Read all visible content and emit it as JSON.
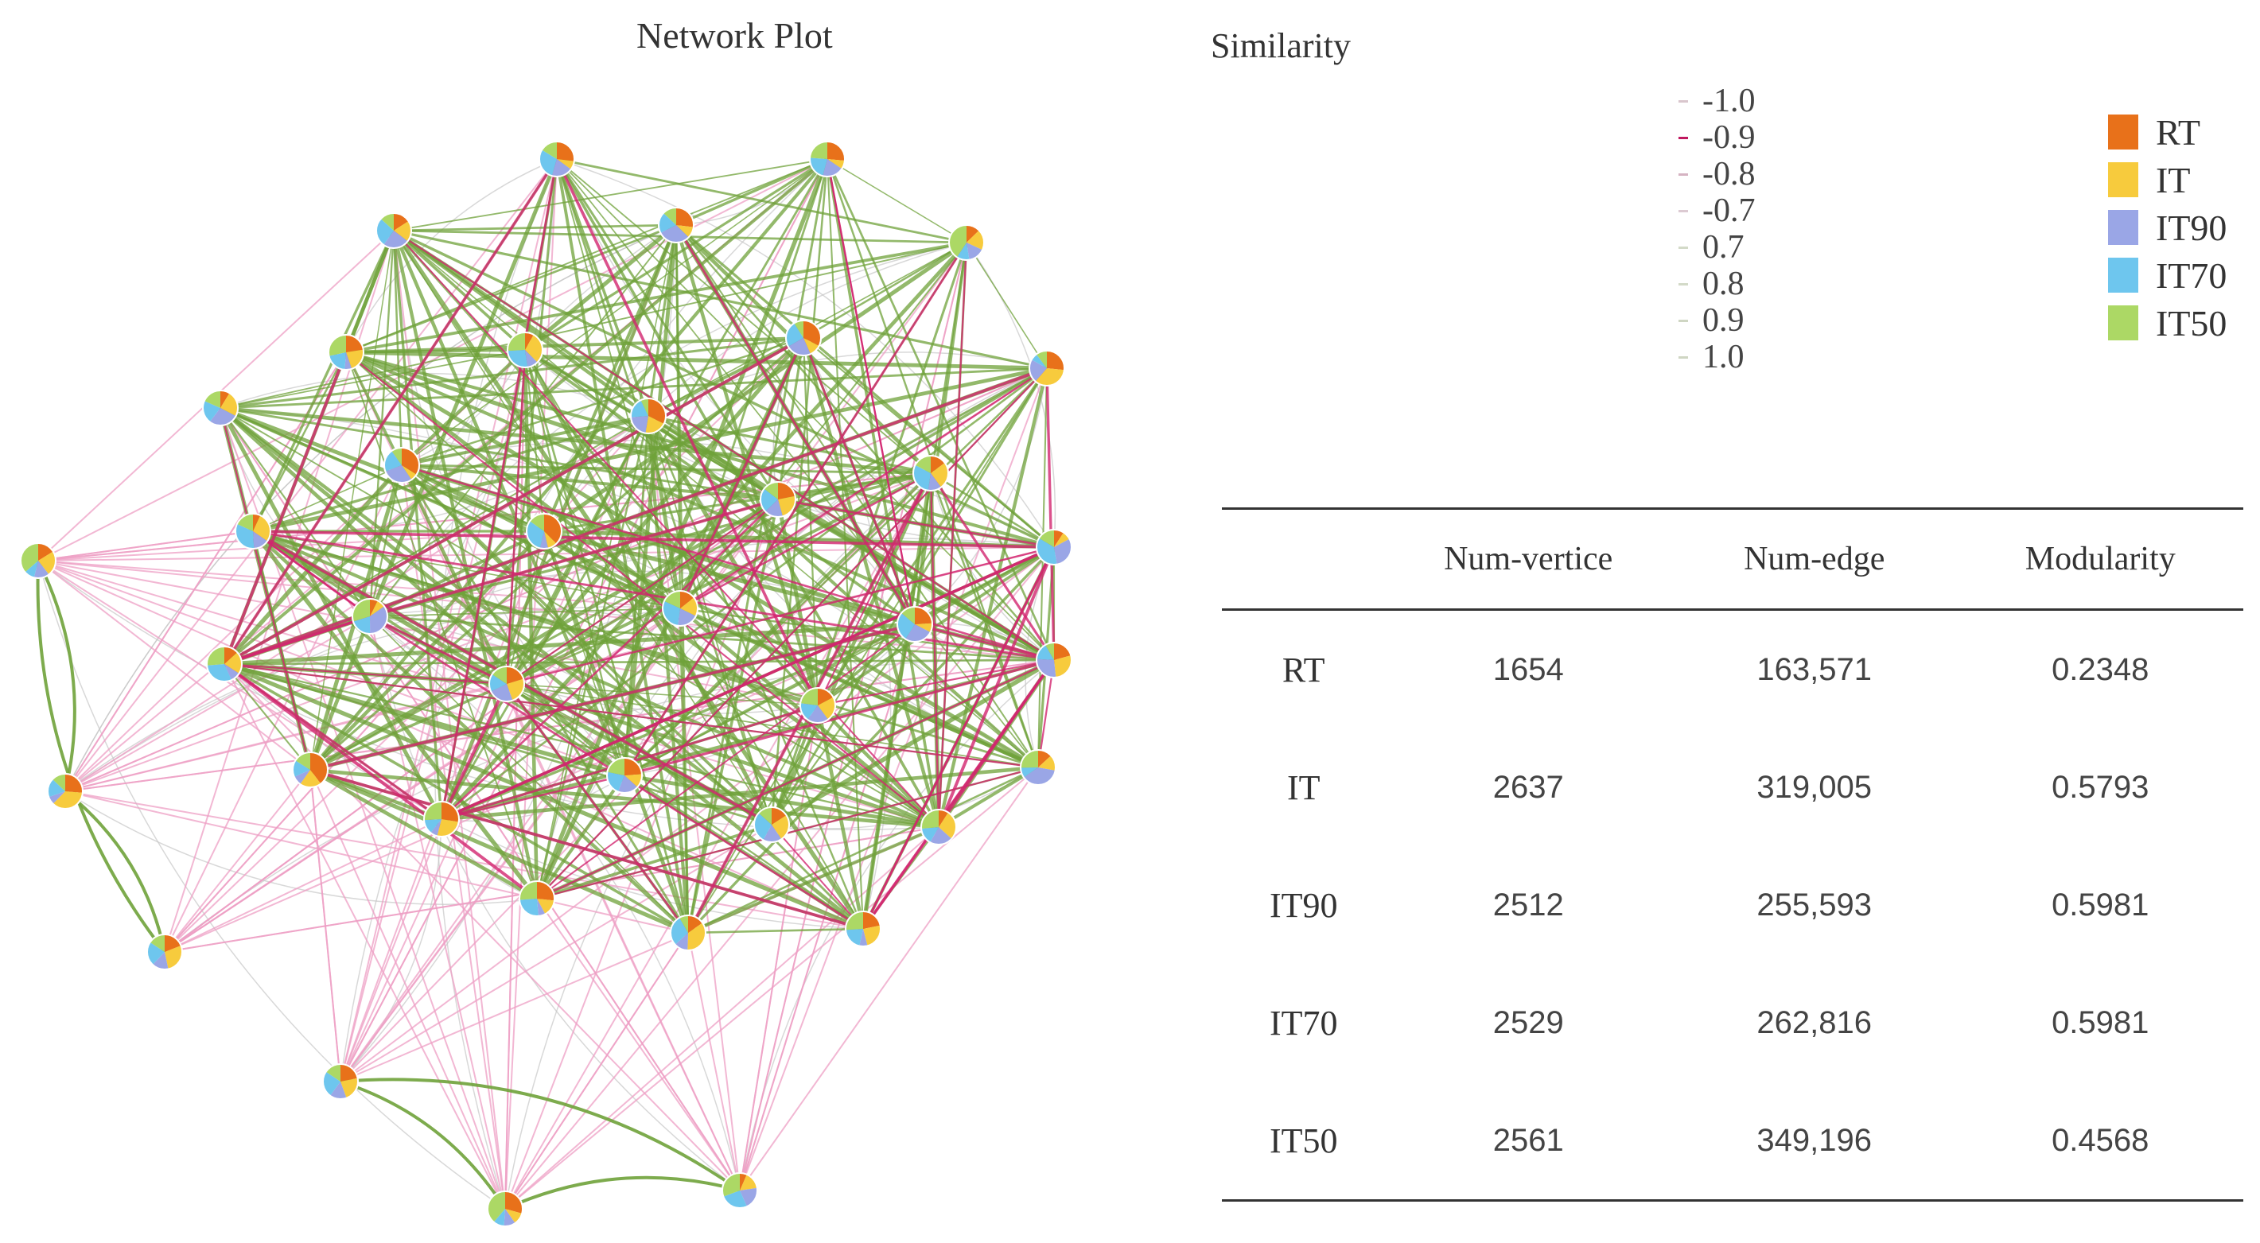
{
  "network": {
    "title": "Network Plot"
  },
  "similarity_legend": {
    "title": "Similarity",
    "items": [
      {
        "label": "-1.0",
        "color": "#d9c6cd"
      },
      {
        "label": "-0.9",
        "color": "#c0185f"
      },
      {
        "label": "-0.8",
        "color": "#d5b3c2"
      },
      {
        "label": "-0.7",
        "color": "#dccad2"
      },
      {
        "label": "0.7",
        "color": "#d3dac8"
      },
      {
        "label": "0.8",
        "color": "#d3dac8"
      },
      {
        "label": "0.9",
        "color": "#cfd6c3"
      },
      {
        "label": "1.0",
        "color": "#cfd6c3"
      }
    ]
  },
  "group_legend": {
    "items": [
      {
        "label": "RT",
        "color": "#e8711a"
      },
      {
        "label": "IT",
        "color": "#f7cb3d"
      },
      {
        "label": "IT90",
        "color": "#9aa6e6"
      },
      {
        "label": "IT70",
        "color": "#6ec6ee"
      },
      {
        "label": "IT50",
        "color": "#acd865"
      }
    ]
  },
  "stats_table": {
    "headers": [
      "",
      "Num-vertice",
      "Num-edge",
      "Modularity"
    ],
    "rows": [
      {
        "group": "RT",
        "vertices": "1654",
        "edges": "163,571",
        "modularity": "0.2348"
      },
      {
        "group": "IT",
        "vertices": "2637",
        "edges": "319,005",
        "modularity": "0.5793"
      },
      {
        "group": "IT90",
        "vertices": "2512",
        "edges": "255,593",
        "modularity": "0.5981"
      },
      {
        "group": "IT70",
        "vertices": "2529",
        "edges": "262,816",
        "modularity": "0.5981"
      },
      {
        "group": "IT50",
        "vertices": "2561",
        "edges": "349,196",
        "modularity": "0.4568"
      }
    ]
  },
  "colors": {
    "positive_edge": "#6fa23a",
    "negative_edge": "#d2266f",
    "weak_negative_edge": "#ee9fc4",
    "faint_edge": "#c8c8c8"
  }
}
